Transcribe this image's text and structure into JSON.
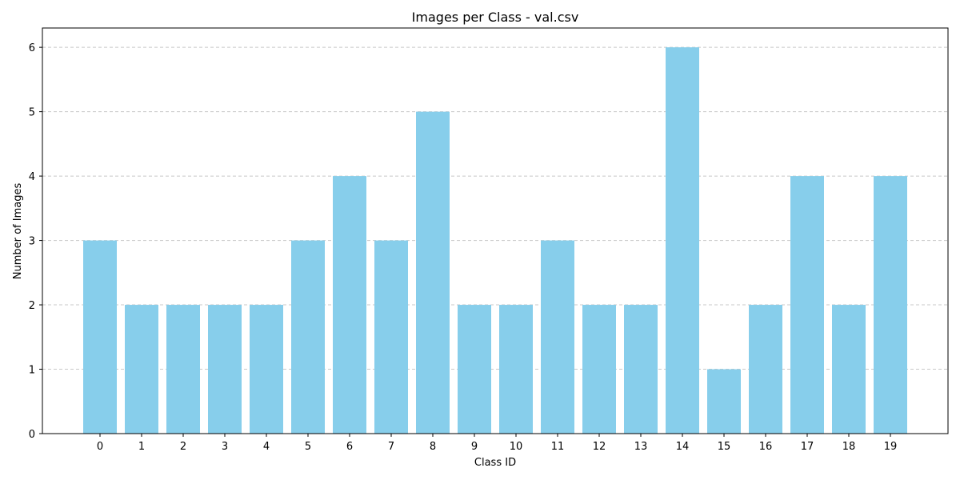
{
  "chart_data": {
    "type": "bar",
    "title": "Images per Class - val.csv",
    "xlabel": "Class ID",
    "ylabel": "Number of Images",
    "categories": [
      "0",
      "1",
      "2",
      "3",
      "4",
      "5",
      "6",
      "7",
      "8",
      "9",
      "10",
      "11",
      "12",
      "13",
      "14",
      "15",
      "16",
      "17",
      "18",
      "19"
    ],
    "values": [
      3,
      2,
      2,
      2,
      2,
      3,
      4,
      3,
      5,
      2,
      2,
      3,
      2,
      2,
      6,
      1,
      2,
      4,
      2,
      4
    ],
    "ylim": [
      0,
      6.3
    ],
    "yticks": [
      0,
      1,
      2,
      3,
      4,
      5,
      6
    ],
    "grid": "y-axis dashed",
    "bar_color": "#87ceeb"
  }
}
